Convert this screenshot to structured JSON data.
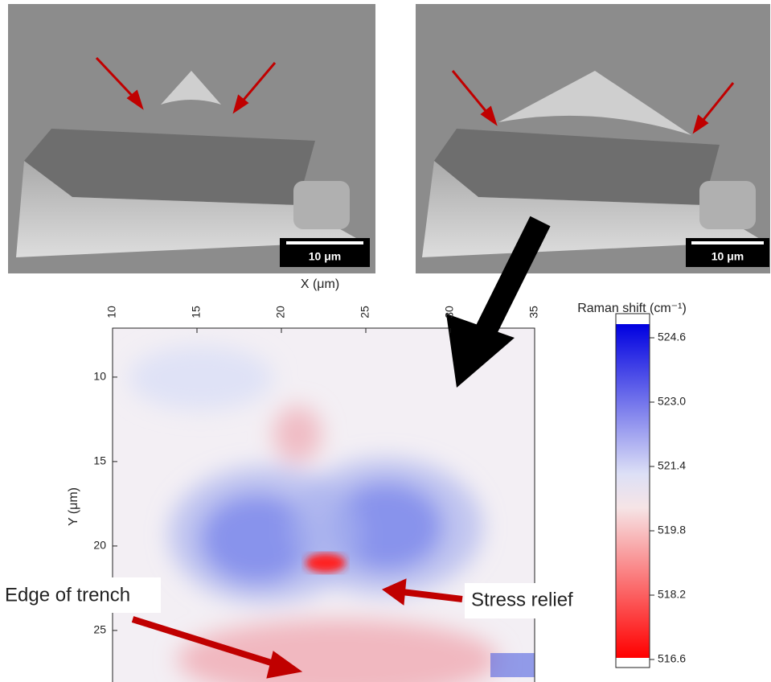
{
  "sem_images": [
    {
      "scale_bar": "10 μm"
    },
    {
      "scale_bar": "10 μm"
    }
  ],
  "chart_data": {
    "type": "heatmap",
    "x_label": "X (μm)",
    "y_label": "Y (μm)",
    "colorbar_label": "Raman shift (cm⁻¹)",
    "xlim": [
      10,
      35
    ],
    "xticks": [
      10,
      15,
      20,
      25,
      30,
      35
    ],
    "ylim": [
      7.1,
      28.1
    ],
    "yticks": [
      10,
      15,
      20,
      25
    ],
    "clim": [
      516.4,
      525.2
    ],
    "cticks": [
      {
        "value": 524.6,
        "label": "524.6"
      },
      {
        "value": 523,
        "label": "523.0"
      },
      {
        "value": 521.4,
        "label": "521.4"
      },
      {
        "value": 519.8,
        "label": "519.8"
      },
      {
        "value": 518.2,
        "label": "518.2"
      },
      {
        "value": 516.6,
        "label": "516.6"
      }
    ],
    "annotations": [
      "Edge of trench",
      "Stress relief"
    ]
  }
}
